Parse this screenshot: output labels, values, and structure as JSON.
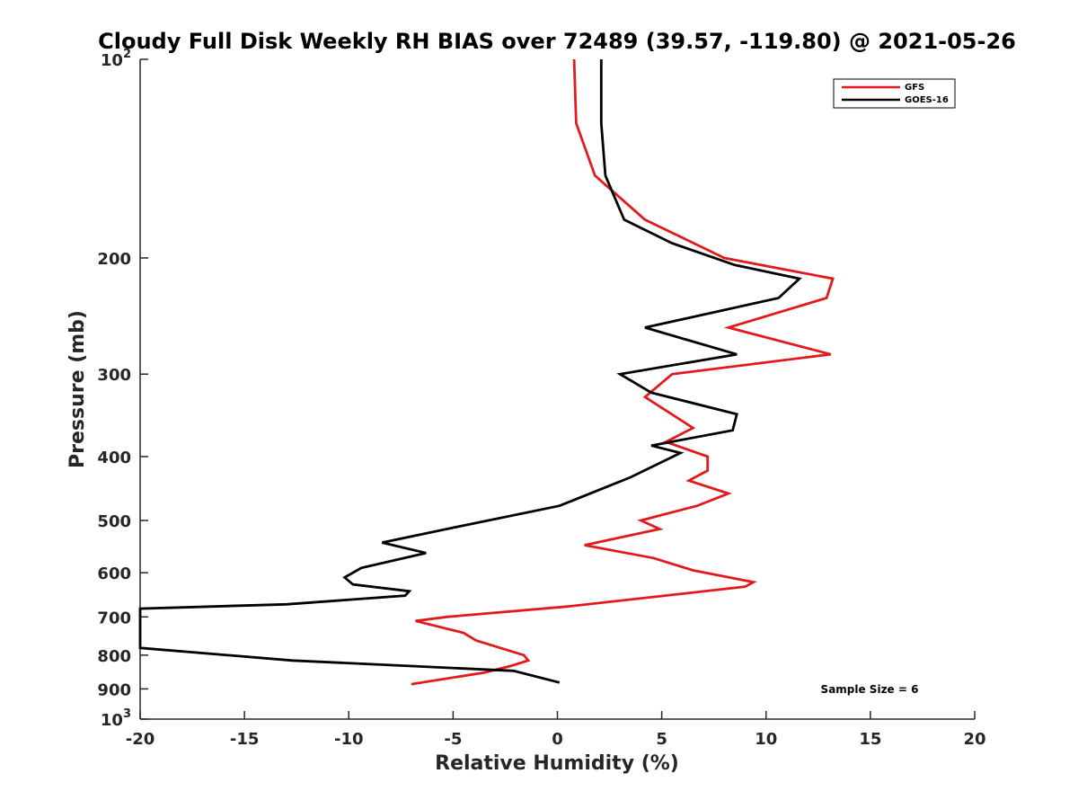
{
  "chart_data": {
    "type": "line",
    "title": "Cloudy Full Disk Weekly RH BIAS over 72489 (39.57, -119.80) @ 2021-05-26",
    "xlabel": "Relative Humidity (%)",
    "ylabel": "Pressure (mb)",
    "xlim": [
      -20,
      20
    ],
    "ylim": [
      100,
      1000
    ],
    "y_scale": "log",
    "y_reversed": true,
    "grid": false,
    "legend_position": "top-right",
    "x_ticks": [
      "-20",
      "-15",
      "-10",
      "-5",
      "0",
      "5",
      "10",
      "15",
      "20"
    ],
    "y_ticks": [
      {
        "value": 100,
        "base": "10",
        "exp": "2"
      },
      {
        "value": 200,
        "label": "200"
      },
      {
        "value": 300,
        "label": "300"
      },
      {
        "value": 400,
        "label": "400"
      },
      {
        "value": 500,
        "label": "500"
      },
      {
        "value": 600,
        "label": "600"
      },
      {
        "value": 700,
        "label": "700"
      },
      {
        "value": 800,
        "label": "800"
      },
      {
        "value": 900,
        "label": "900"
      },
      {
        "value": 1000,
        "base": "10",
        "exp": "3"
      }
    ],
    "series": [
      {
        "name": "GFS",
        "color": "#e31a1c",
        "points": [
          [
            0.8,
            100
          ],
          [
            0.9,
            125
          ],
          [
            1.8,
            150
          ],
          [
            4.2,
            175
          ],
          [
            8.0,
            200
          ],
          [
            13.2,
            215
          ],
          [
            12.9,
            230
          ],
          [
            8.2,
            255
          ],
          [
            13.1,
            280
          ],
          [
            5.5,
            300
          ],
          [
            4.2,
            325
          ],
          [
            6.5,
            362
          ],
          [
            5.2,
            380
          ],
          [
            7.2,
            400
          ],
          [
            7.2,
            420
          ],
          [
            6.3,
            435
          ],
          [
            8.2,
            455
          ],
          [
            6.7,
            475
          ],
          [
            4.0,
            500
          ],
          [
            4.9,
            515
          ],
          [
            1.3,
            545
          ],
          [
            4.6,
            570
          ],
          [
            6.5,
            595
          ],
          [
            9.4,
            620
          ],
          [
            9.0,
            630
          ],
          [
            0.5,
            675
          ],
          [
            -5.3,
            700
          ],
          [
            -6.8,
            710
          ],
          [
            -4.5,
            740
          ],
          [
            -3.9,
            760
          ],
          [
            -1.6,
            800
          ],
          [
            -1.4,
            815
          ],
          [
            -2.2,
            830
          ],
          [
            -3.5,
            850
          ],
          [
            -7.0,
            885
          ]
        ]
      },
      {
        "name": "GOES-16",
        "color": "#000000",
        "points": [
          [
            2.1,
            100
          ],
          [
            2.1,
            125
          ],
          [
            2.3,
            150
          ],
          [
            3.2,
            175
          ],
          [
            5.5,
            190
          ],
          [
            8.5,
            205
          ],
          [
            11.6,
            215
          ],
          [
            10.6,
            230
          ],
          [
            4.2,
            255
          ],
          [
            8.6,
            280
          ],
          [
            3.0,
            300
          ],
          [
            4.5,
            320
          ],
          [
            8.6,
            345
          ],
          [
            8.4,
            365
          ],
          [
            4.5,
            385
          ],
          [
            5.9,
            395
          ],
          [
            3.5,
            430
          ],
          [
            0.1,
            475
          ],
          [
            -5.3,
            515
          ],
          [
            -8.4,
            540
          ],
          [
            -6.3,
            560
          ],
          [
            -9.4,
            590
          ],
          [
            -10.2,
            610
          ],
          [
            -9.8,
            625
          ],
          [
            -7.1,
            640
          ],
          [
            -7.3,
            650
          ],
          [
            -13.0,
            670
          ],
          [
            -20.0,
            680
          ],
          [
            -20.0,
            780
          ],
          [
            -12.7,
            815
          ],
          [
            -2.1,
            845
          ],
          [
            0.1,
            880
          ]
        ]
      }
    ],
    "annotations": [
      {
        "text": "Sample Size = 6"
      }
    ]
  }
}
